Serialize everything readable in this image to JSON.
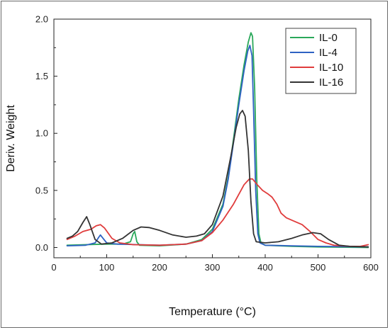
{
  "chart_data": {
    "type": "line",
    "xlabel": "Temperature (°C)",
    "ylabel": "Deriv. Weight",
    "xlim": [
      0,
      600
    ],
    "ylim": [
      -0.09,
      2.0
    ],
    "x_ticks": [
      0,
      100,
      200,
      300,
      400,
      500,
      600
    ],
    "y_ticks": [
      0.0,
      0.5,
      1.0,
      1.5,
      2.0
    ],
    "x_tick_labels": [
      "0",
      "100",
      "200",
      "300",
      "400",
      "500",
      "600"
    ],
    "y_tick_labels": [
      "0.0",
      "0.5",
      "1.0",
      "1.5",
      "2.0"
    ],
    "grid": false,
    "legend_position": "top-right",
    "series": [
      {
        "name": "IL-0",
        "color": "#2aa85a",
        "points": [
          [
            25,
            0.02
          ],
          [
            60,
            0.025
          ],
          [
            100,
            0.03
          ],
          [
            130,
            0.03
          ],
          [
            145,
            0.05
          ],
          [
            150,
            0.12
          ],
          [
            153,
            0.14
          ],
          [
            157,
            0.05
          ],
          [
            162,
            0.02
          ],
          [
            200,
            0.015
          ],
          [
            250,
            0.03
          ],
          [
            280,
            0.07
          ],
          [
            300,
            0.16
          ],
          [
            320,
            0.38
          ],
          [
            330,
            0.62
          ],
          [
            340,
            0.95
          ],
          [
            350,
            1.3
          ],
          [
            360,
            1.6
          ],
          [
            368,
            1.8
          ],
          [
            373,
            1.88
          ],
          [
            376,
            1.85
          ],
          [
            380,
            1.4
          ],
          [
            384,
            0.6
          ],
          [
            388,
            0.12
          ],
          [
            392,
            0.04
          ],
          [
            400,
            0.02
          ],
          [
            450,
            0.01
          ],
          [
            500,
            0.005
          ],
          [
            595,
            0.0
          ]
        ]
      },
      {
        "name": "IL-4",
        "color": "#2e62c2",
        "points": [
          [
            25,
            0.015
          ],
          [
            60,
            0.02
          ],
          [
            78,
            0.04
          ],
          [
            85,
            0.09
          ],
          [
            88,
            0.11
          ],
          [
            93,
            0.08
          ],
          [
            100,
            0.04
          ],
          [
            120,
            0.03
          ],
          [
            160,
            0.025
          ],
          [
            200,
            0.02
          ],
          [
            250,
            0.03
          ],
          [
            280,
            0.06
          ],
          [
            300,
            0.14
          ],
          [
            320,
            0.36
          ],
          [
            330,
            0.6
          ],
          [
            340,
            0.92
          ],
          [
            350,
            1.25
          ],
          [
            360,
            1.55
          ],
          [
            367,
            1.72
          ],
          [
            371,
            1.77
          ],
          [
            375,
            1.68
          ],
          [
            378,
            1.2
          ],
          [
            382,
            0.5
          ],
          [
            386,
            0.12
          ],
          [
            390,
            0.04
          ],
          [
            400,
            0.02
          ],
          [
            450,
            0.015
          ],
          [
            500,
            0.01
          ],
          [
            595,
            0.005
          ]
        ]
      },
      {
        "name": "IL-10",
        "color": "#e03c3c",
        "points": [
          [
            25,
            0.07
          ],
          [
            40,
            0.1
          ],
          [
            55,
            0.14
          ],
          [
            70,
            0.16
          ],
          [
            80,
            0.19
          ],
          [
            88,
            0.2
          ],
          [
            96,
            0.17
          ],
          [
            110,
            0.08
          ],
          [
            125,
            0.04
          ],
          [
            150,
            0.025
          ],
          [
            200,
            0.02
          ],
          [
            250,
            0.03
          ],
          [
            280,
            0.06
          ],
          [
            300,
            0.13
          ],
          [
            320,
            0.24
          ],
          [
            340,
            0.38
          ],
          [
            360,
            0.55
          ],
          [
            370,
            0.6
          ],
          [
            376,
            0.6
          ],
          [
            385,
            0.55
          ],
          [
            395,
            0.5
          ],
          [
            405,
            0.47
          ],
          [
            413,
            0.44
          ],
          [
            422,
            0.38
          ],
          [
            430,
            0.3
          ],
          [
            440,
            0.26
          ],
          [
            455,
            0.23
          ],
          [
            470,
            0.2
          ],
          [
            485,
            0.14
          ],
          [
            500,
            0.07
          ],
          [
            515,
            0.04
          ],
          [
            530,
            0.02
          ],
          [
            560,
            0.01
          ],
          [
            580,
            0.01
          ],
          [
            595,
            0.025
          ]
        ]
      },
      {
        "name": "IL-16",
        "color": "#333333",
        "points": [
          [
            25,
            0.08
          ],
          [
            35,
            0.1
          ],
          [
            45,
            0.14
          ],
          [
            55,
            0.22
          ],
          [
            62,
            0.27
          ],
          [
            68,
            0.2
          ],
          [
            78,
            0.07
          ],
          [
            90,
            0.03
          ],
          [
            110,
            0.04
          ],
          [
            130,
            0.08
          ],
          [
            150,
            0.15
          ],
          [
            165,
            0.18
          ],
          [
            180,
            0.175
          ],
          [
            200,
            0.15
          ],
          [
            225,
            0.11
          ],
          [
            250,
            0.09
          ],
          [
            270,
            0.1
          ],
          [
            285,
            0.12
          ],
          [
            300,
            0.2
          ],
          [
            320,
            0.45
          ],
          [
            335,
            0.8
          ],
          [
            345,
            1.05
          ],
          [
            352,
            1.17
          ],
          [
            357,
            1.2
          ],
          [
            362,
            1.15
          ],
          [
            368,
            0.85
          ],
          [
            373,
            0.4
          ],
          [
            378,
            0.12
          ],
          [
            383,
            0.05
          ],
          [
            400,
            0.04
          ],
          [
            425,
            0.05
          ],
          [
            450,
            0.08
          ],
          [
            470,
            0.11
          ],
          [
            490,
            0.13
          ],
          [
            505,
            0.12
          ],
          [
            520,
            0.07
          ],
          [
            540,
            0.02
          ],
          [
            560,
            0.01
          ],
          [
            595,
            0.005
          ]
        ]
      }
    ]
  }
}
